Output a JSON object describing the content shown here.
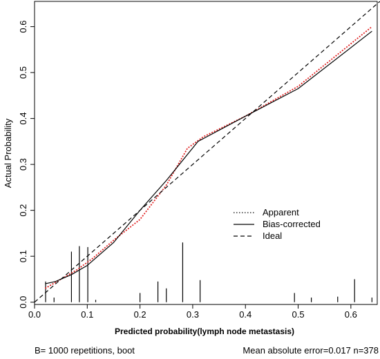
{
  "chart_data": {
    "type": "line",
    "title": "",
    "xlabel": "Predicted probability(lymph node metastasis)",
    "ylabel": "Actual Probability",
    "xlim": [
      0,
      0.65
    ],
    "ylim": [
      -0.005,
      0.655
    ],
    "x_ticks": [
      "0.0",
      "0.1",
      "0.2",
      "0.3",
      "0.4",
      "0.5",
      "0.6"
    ],
    "y_ticks": [
      "0.0",
      "0.1",
      "0.2",
      "0.3",
      "0.4",
      "0.5",
      "0.6"
    ],
    "series": [
      {
        "name": "Apparent",
        "style": "dotted",
        "color": "#e02020",
        "points": [
          [
            0.02,
            0.03
          ],
          [
            0.05,
            0.05
          ],
          [
            0.08,
            0.07
          ],
          [
            0.11,
            0.095
          ],
          [
            0.15,
            0.135
          ],
          [
            0.2,
            0.18
          ],
          [
            0.25,
            0.255
          ],
          [
            0.29,
            0.335
          ],
          [
            0.32,
            0.36
          ],
          [
            0.4,
            0.405
          ],
          [
            0.5,
            0.47
          ],
          [
            0.64,
            0.6
          ]
        ]
      },
      {
        "name": "Bias-corrected",
        "style": "solid",
        "color": "#000000",
        "points": [
          [
            0.02,
            0.04
          ],
          [
            0.04,
            0.045
          ],
          [
            0.07,
            0.06
          ],
          [
            0.1,
            0.08
          ],
          [
            0.15,
            0.13
          ],
          [
            0.2,
            0.2
          ],
          [
            0.25,
            0.265
          ],
          [
            0.31,
            0.35
          ],
          [
            0.4,
            0.405
          ],
          [
            0.5,
            0.465
          ],
          [
            0.64,
            0.59
          ]
        ]
      },
      {
        "name": "Ideal",
        "style": "dashed",
        "color": "#000000",
        "points": [
          [
            0.0,
            0.0
          ],
          [
            0.655,
            0.655
          ]
        ]
      }
    ],
    "rug": [
      {
        "x": 0.021,
        "h": 0.045
      },
      {
        "x": 0.037,
        "h": 0.01
      },
      {
        "x": 0.07,
        "h": 0.11
      },
      {
        "x": 0.085,
        "h": 0.122
      },
      {
        "x": 0.101,
        "h": 0.12
      },
      {
        "x": 0.116,
        "h": 0.005
      },
      {
        "x": 0.2,
        "h": 0.02
      },
      {
        "x": 0.234,
        "h": 0.045
      },
      {
        "x": 0.25,
        "h": 0.03
      },
      {
        "x": 0.281,
        "h": 0.13
      },
      {
        "x": 0.314,
        "h": 0.048
      },
      {
        "x": 0.493,
        "h": 0.02
      },
      {
        "x": 0.525,
        "h": 0.01
      },
      {
        "x": 0.575,
        "h": 0.012
      },
      {
        "x": 0.607,
        "h": 0.05
      },
      {
        "x": 0.64,
        "h": 0.01
      }
    ],
    "legend_placement": "center-right",
    "grid": false
  },
  "legend": {
    "items": [
      {
        "label": "Apparent",
        "style": "dotted"
      },
      {
        "label": "Bias-corrected",
        "style": "solid"
      },
      {
        "label": "Ideal",
        "style": "dashed"
      }
    ]
  },
  "footer": {
    "left": "B= 1000 repetitions, boot",
    "right": "Mean absolute error=0.017 n=378"
  }
}
